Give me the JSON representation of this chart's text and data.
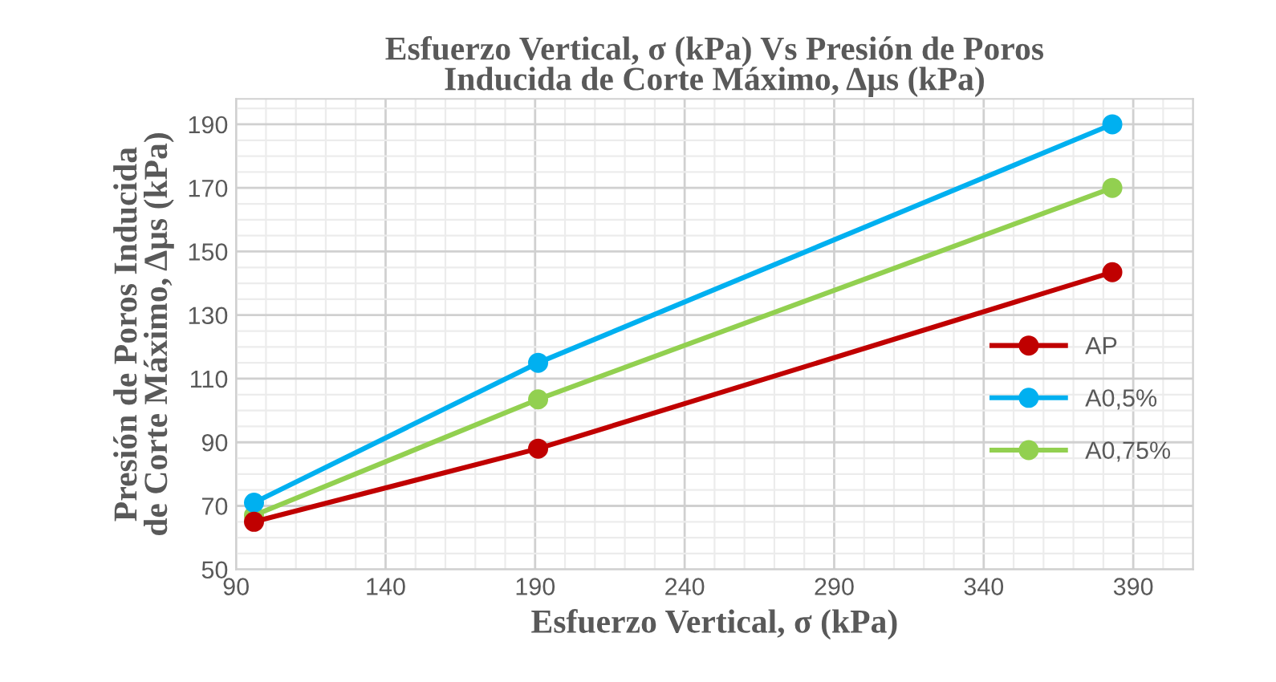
{
  "chart_data": {
    "type": "line",
    "title": "Esfuerzo Vertical, σ (kPa) Vs Presión de Poros\nInducida de Corte Máximo, Δμs (kPa)",
    "xlabel": "Esfuerzo Vertical, σ (kPa)",
    "ylabel": "Presión de Poros Inducida\nde Corte Máximo, Δμs (kPa)",
    "x": [
      96,
      191,
      383
    ],
    "series": [
      {
        "name": "AP",
        "color": "#c00000",
        "values": [
          65,
          88,
          143.5
        ]
      },
      {
        "name": "A0,5%",
        "color": "#00b0f0",
        "values": [
          71,
          115,
          190
        ]
      },
      {
        "name": "A0,75%",
        "color": "#92d050",
        "values": [
          67,
          103.5,
          170
        ]
      }
    ],
    "xlim": [
      90,
      410
    ],
    "xticks": [
      90,
      140,
      190,
      240,
      290,
      340,
      390
    ],
    "ylim": [
      50,
      198
    ],
    "yticks": [
      50,
      70,
      90,
      110,
      130,
      150,
      170,
      190
    ],
    "grid": true,
    "legend": "center right",
    "marker": "circle",
    "line_style": "solid"
  }
}
